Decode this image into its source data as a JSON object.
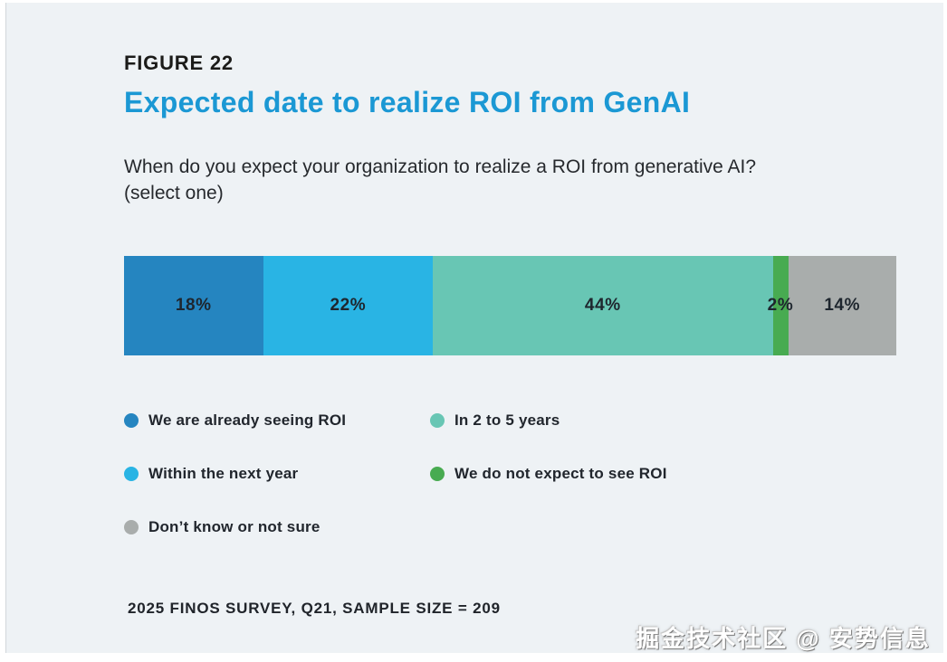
{
  "figure_label": "FIGURE 22",
  "title": "Expected date to realize ROI from GenAI",
  "question": "When do you expect your organization to realize a ROI from generative AI? (select one)",
  "chart_data": {
    "type": "bar",
    "subtype": "horizontal-stacked",
    "title": "Expected date to realize ROI from GenAI",
    "categories": [
      "We are already seeing ROI",
      "Within the next year",
      "In 2 to 5 years",
      "We do not expect to see ROI",
      "Don't know or not sure"
    ],
    "values": [
      18,
      22,
      44,
      2,
      14
    ],
    "unit": "%",
    "colors": [
      "#2585c0",
      "#29b4e4",
      "#68c6b4",
      "#48ab51",
      "#a9adac"
    ],
    "xlim": [
      0,
      100
    ],
    "grid": false,
    "legend_position": "below"
  },
  "legend": {
    "items": [
      {
        "label": "We are already seeing ROI",
        "color": "#2585c0"
      },
      {
        "label": "Within the next year",
        "color": "#29b4e4"
      },
      {
        "label": "Don’t know or not sure",
        "color": "#a9adac"
      },
      {
        "label": "In 2 to 5 years",
        "color": "#68c6b4"
      },
      {
        "label": "We do not expect to see ROI",
        "color": "#48ab51"
      }
    ]
  },
  "footer_note": "2025 FINOS SURVEY, Q21, SAMPLE SIZE = 209",
  "watermark": "掘金技术社区 @ 安势信息",
  "colors": {
    "title_accent": "#1b98d4",
    "panel_background": "#eef2f5",
    "text": "#26292d"
  }
}
